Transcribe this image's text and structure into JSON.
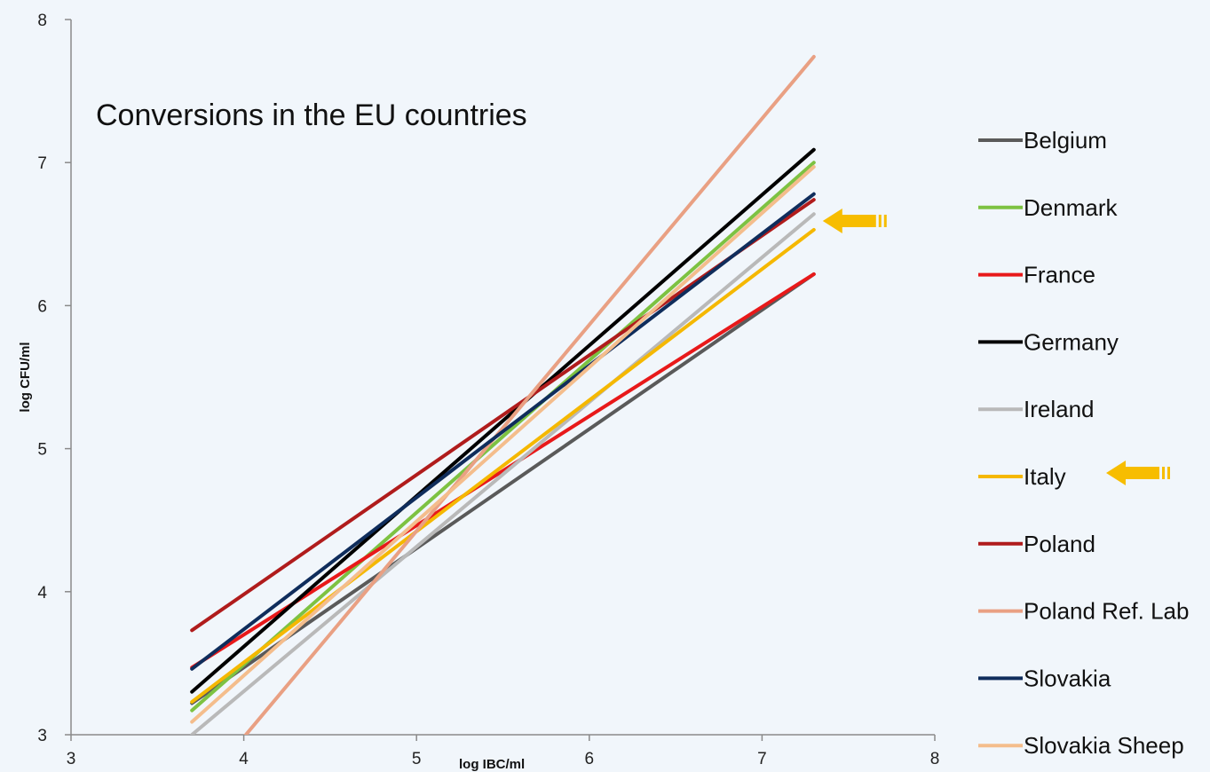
{
  "chart_data": {
    "type": "line",
    "title": "Conversions in the EU countries",
    "xlabel": "log IBC/ml",
    "ylabel": "log CFU/ml",
    "xlim": [
      3,
      8
    ],
    "ylim": [
      3,
      8
    ],
    "x_ticks": [
      "3",
      "4",
      "5",
      "6",
      "7",
      "8"
    ],
    "y_ticks": [
      "3",
      "4",
      "5",
      "6",
      "7",
      "8"
    ],
    "grid": false,
    "legend_position": "right",
    "series": [
      {
        "name": "Belgium",
        "color": "#5a5a5a",
        "x": [
          3.7,
          7.3
        ],
        "y": [
          3.22,
          6.22
        ]
      },
      {
        "name": "Denmark",
        "color": "#7dc242",
        "x": [
          3.7,
          7.3
        ],
        "y": [
          3.17,
          7.0
        ]
      },
      {
        "name": "France",
        "color": "#e8191a",
        "x": [
          3.7,
          7.3
        ],
        "y": [
          3.47,
          6.22
        ]
      },
      {
        "name": "Germany",
        "color": "#000000",
        "x": [
          3.7,
          7.3
        ],
        "y": [
          3.3,
          7.09
        ]
      },
      {
        "name": "Ireland",
        "color": "#b9b9b9",
        "x": [
          3.7,
          7.3
        ],
        "y": [
          3.0,
          6.64
        ]
      },
      {
        "name": "Italy",
        "color": "#f5b800",
        "x": [
          3.7,
          7.3
        ],
        "y": [
          3.23,
          6.53
        ]
      },
      {
        "name": "Poland",
        "color": "#b01c1c",
        "x": [
          3.7,
          7.3
        ],
        "y": [
          3.73,
          6.74
        ]
      },
      {
        "name": "Poland Ref. Lab",
        "color": "#e9a083",
        "x": [
          3.7,
          7.3
        ],
        "y": [
          2.55,
          7.74
        ]
      },
      {
        "name": "Slovakia",
        "color": "#0f2d5c",
        "x": [
          3.7,
          7.3
        ],
        "y": [
          3.46,
          6.78
        ]
      },
      {
        "name": "Slovakia Sheep",
        "color": "#f4bd8c",
        "x": [
          3.7,
          7.3
        ],
        "y": [
          3.09,
          6.97
        ]
      }
    ],
    "annotations": [
      {
        "type": "arrow",
        "color": "#f7bd00",
        "points_to": "end of Italy line"
      },
      {
        "type": "arrow",
        "color": "#f7bd00",
        "points_to": "Italy legend entry"
      }
    ]
  }
}
